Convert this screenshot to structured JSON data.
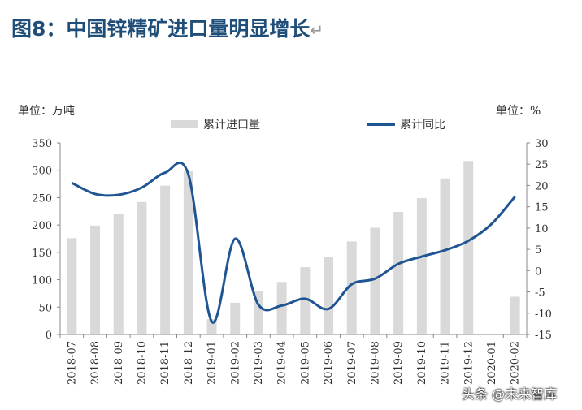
{
  "title": "图8：中国锌精矿进口量明显增长",
  "title_mark": "↵",
  "watermark": "头条 @未来智库",
  "chart_data": {
    "type": "bar+line",
    "left_unit": "单位：万吨",
    "right_unit": "单位：%",
    "legend_placement": "top",
    "grid": false,
    "categories": [
      "2018-07",
      "2018-08",
      "2018-09",
      "2018-10",
      "2018-11",
      "2018-12",
      "2019-01",
      "2019-02",
      "2019-03",
      "2019-04",
      "2019-05",
      "2019-06",
      "2019-07",
      "2019-08",
      "2019-09",
      "2019-10",
      "2019-11",
      "2019-12",
      "2020-01",
      "2020-02"
    ],
    "left_axis": {
      "ylim": [
        0,
        350
      ],
      "ticks": [
        0,
        50,
        100,
        150,
        200,
        250,
        300,
        350
      ]
    },
    "right_axis": {
      "ylim": [
        -15,
        30
      ],
      "ticks": [
        -15,
        -10,
        -5,
        0,
        5,
        10,
        15,
        20,
        25,
        30
      ]
    },
    "series": [
      {
        "name": "累计进口量",
        "kind": "bar",
        "axis": "left",
        "color": "#d9d9d9",
        "values": [
          176,
          199,
          221,
          242,
          272,
          298,
          28,
          58,
          79,
          96,
          123,
          141,
          170,
          195,
          224,
          249,
          285,
          317,
          null,
          69
        ]
      },
      {
        "name": "累计同比",
        "kind": "line",
        "axis": "right",
        "color": "#1f5593",
        "values": [
          20.6,
          18.0,
          17.8,
          19.5,
          23.0,
          22.5,
          -12.0,
          7.5,
          -8.0,
          -8.2,
          -6.6,
          -9.0,
          -3.2,
          -1.9,
          1.6,
          3.3,
          4.8,
          7.0,
          11.0,
          17.4
        ]
      }
    ]
  }
}
